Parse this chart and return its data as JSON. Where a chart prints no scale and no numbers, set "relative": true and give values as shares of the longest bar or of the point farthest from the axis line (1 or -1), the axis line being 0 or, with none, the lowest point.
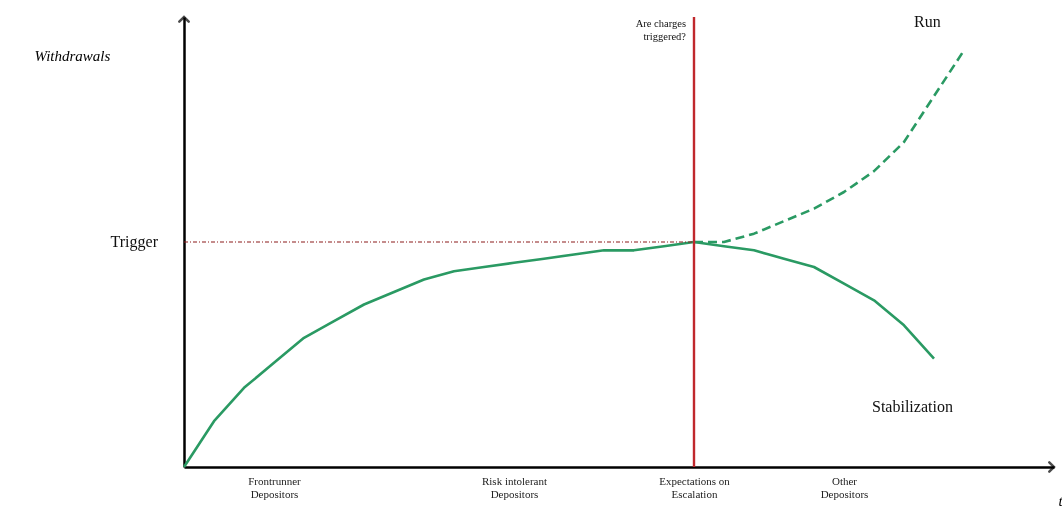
{
  "chart_data": {
    "type": "line",
    "relative": true,
    "xlabel": "t",
    "ylabel": "Withdrawals",
    "categories": [
      null,
      null,
      null,
      "Frontrunner Depositors",
      null,
      null,
      null,
      null,
      null,
      null,
      null,
      "Risk intolerant Depositors",
      null,
      null,
      null,
      null,
      null,
      "Expectations on Escalation",
      null,
      null,
      null,
      null,
      "Other Depositors",
      null,
      null,
      null,
      null,
      null,
      null,
      null
    ],
    "series": [
      {
        "name": "Run",
        "color": "#2a9a63",
        "line_style": "dashed",
        "values": [
          null,
          null,
          null,
          null,
          null,
          null,
          null,
          null,
          null,
          null,
          null,
          null,
          null,
          null,
          null,
          null,
          null,
          0.54,
          0.54,
          0.56,
          0.59,
          0.62,
          0.66,
          0.71,
          0.78,
          0.89,
          1.0,
          null,
          null,
          null
        ]
      },
      {
        "name": "Stabilization",
        "color": "#2a9a63",
        "line_style": "solid",
        "values": [
          0,
          0.11,
          0.19,
          0.25,
          0.31,
          0.35,
          0.39,
          0.42,
          0.45,
          0.47,
          0.48,
          0.49,
          0.5,
          0.51,
          0.52,
          0.52,
          0.53,
          0.54,
          0.53,
          0.52,
          0.5,
          0.48,
          0.44,
          0.4,
          0.34,
          0.26,
          null,
          null,
          null,
          null
        ]
      }
    ],
    "ref_lines": [
      {
        "axis": "y",
        "value": 0.54,
        "label": "Trigger",
        "color": "#8b1a1a",
        "line_style": "dotted"
      },
      {
        "axis": "x",
        "value": "Expectations on Escalation",
        "label": "Are charges triggered?",
        "color": "#c0282d",
        "line_style": "solid"
      }
    ],
    "grid": false,
    "marker": "none"
  }
}
